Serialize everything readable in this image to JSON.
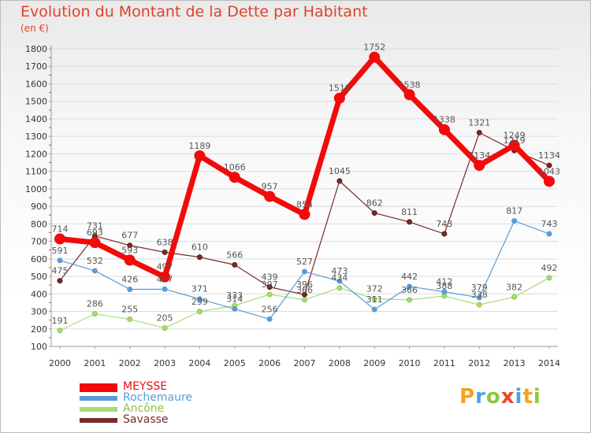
{
  "title": "Evolution du Montant de la Dette par Habitant",
  "unit": "(en €)",
  "brand": {
    "letters": [
      {
        "char": "P",
        "color": "#f5a21b"
      },
      {
        "char": "r",
        "color": "#4aa3df"
      },
      {
        "char": "o",
        "color": "#8cc63f"
      },
      {
        "char": "x",
        "color": "#e8462b"
      },
      {
        "char": "i",
        "color": "#4aa3df"
      },
      {
        "char": "t",
        "color": "#f5a21b"
      },
      {
        "char": "i",
        "color": "#8cc63f"
      }
    ]
  },
  "chart_data": {
    "type": "line",
    "title": "Evolution du Montant de la Dette par Habitant",
    "ylabel": "(en €)",
    "xlabel": "",
    "x": [
      "2000",
      "2001",
      "2002",
      "2003",
      "2004",
      "2005",
      "2006",
      "2007",
      "2008",
      "2009",
      "2010",
      "2011",
      "2012",
      "2013",
      "2014"
    ],
    "ylim": [
      100,
      1800
    ],
    "yticks": [
      100,
      200,
      300,
      400,
      500,
      600,
      700,
      800,
      900,
      1000,
      1100,
      1200,
      1300,
      1400,
      1500,
      1600,
      1700,
      1800
    ],
    "legend_position": "bottom-left",
    "series": [
      {
        "name": "MEYSSE",
        "color": "#f20b0b",
        "lineWidth": 7,
        "markerRadius": 6.5,
        "markerStroke": "#f20b0b",
        "labelColor": "#555555",
        "values": [
          714,
          693,
          593,
          497,
          1189,
          1066,
          957,
          854,
          1518,
          1752,
          1538,
          1338,
          1134,
          1249,
          1043
        ]
      },
      {
        "name": "Rochemaure",
        "color": "#5b9bd5",
        "lineWidth": 1.2,
        "markerRadius": 3,
        "markerStroke": "#5b9bd5",
        "labelColor": "#555555",
        "values": [
          591,
          532,
          426,
          427,
          371,
          314,
          256,
          527,
          473,
          311,
          442,
          412,
          379,
          817,
          743
        ]
      },
      {
        "name": "Ancône",
        "color": "#a6dc7c",
        "lineWidth": 1.2,
        "markerRadius": 3,
        "markerStroke": "#8cc63f",
        "labelColor": "#555555",
        "values": [
          191,
          286,
          255,
          205,
          299,
          333,
          397,
          366,
          434,
          372,
          366,
          388,
          338,
          382,
          492
        ]
      },
      {
        "name": "Savasse",
        "color": "#7a2a2a",
        "lineWidth": 1.2,
        "markerRadius": 3,
        "markerStroke": "#5a1a1a",
        "labelColor": "#555555",
        "values": [
          475,
          731,
          677,
          638,
          610,
          566,
          439,
          396,
          1045,
          862,
          811,
          743,
          1321,
          1219,
          1134
        ]
      }
    ]
  }
}
